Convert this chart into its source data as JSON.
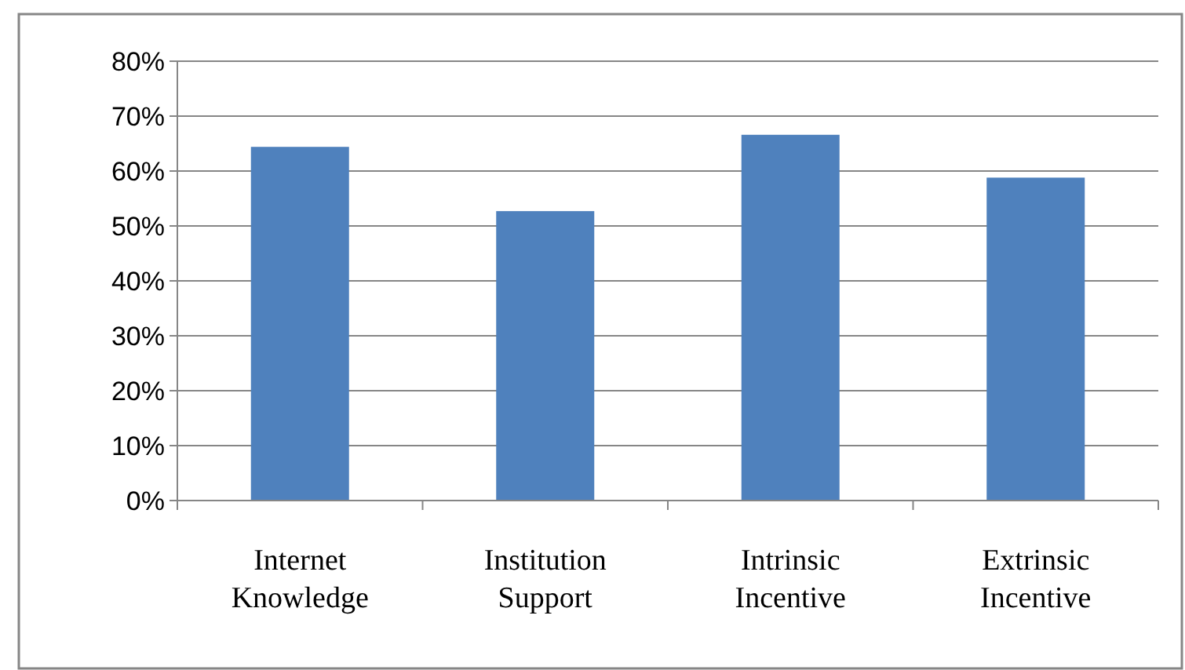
{
  "chart_data": {
    "type": "bar",
    "categories": [
      "Internet Knowledge",
      "Institution Support",
      "Intrinsic Incentive",
      "Extrinsic Incentive"
    ],
    "values": [
      64.4,
      52.7,
      66.6,
      58.8
    ],
    "color": "#4f81bd",
    "ylim": [
      0,
      80
    ],
    "yticks": [
      {
        "value": 0,
        "label": "0%"
      },
      {
        "value": 10,
        "label": "10%"
      },
      {
        "value": 20,
        "label": "20%"
      },
      {
        "value": 30,
        "label": "30%"
      },
      {
        "value": 40,
        "label": "40%"
      },
      {
        "value": 50,
        "label": "50%"
      },
      {
        "value": 60,
        "label": "60%"
      },
      {
        "value": 70,
        "label": "70%"
      },
      {
        "value": 80,
        "label": "80%"
      }
    ],
    "grid": "y"
  }
}
